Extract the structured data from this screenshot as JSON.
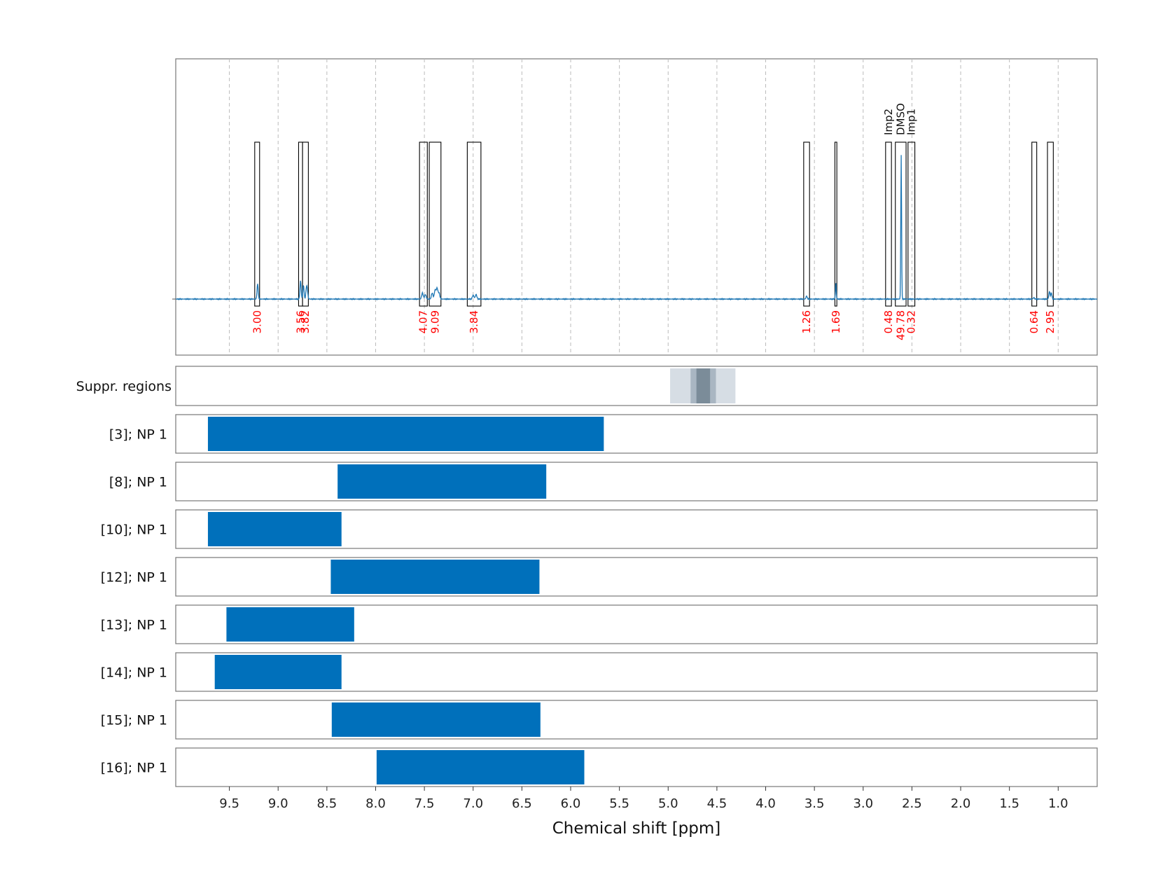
{
  "chart_data": {
    "type": "bar",
    "xlabel": "Chemical shift [ppm]",
    "xlim": [
      10.05,
      0.6
    ],
    "x_ticks": [
      "9.5",
      "9.0",
      "8.5",
      "8.0",
      "7.5",
      "7.0",
      "6.5",
      "6.0",
      "5.5",
      "5.0",
      "4.5",
      "4.0",
      "3.5",
      "3.0",
      "2.5",
      "2.0",
      "1.5",
      "1.0"
    ],
    "x_tick_values": [
      9.5,
      9.0,
      8.5,
      8.0,
      7.5,
      7.0,
      6.5,
      6.0,
      5.5,
      5.0,
      4.5,
      4.0,
      3.5,
      3.0,
      2.5,
      2.0,
      1.5,
      1.0
    ],
    "grid": true,
    "spectrum": {
      "color": "#1f77b4",
      "baseline": 0,
      "ymax": 1.0,
      "peaks": [
        {
          "x": 9.21,
          "height": 0.1,
          "width": 0.006
        },
        {
          "x": 8.77,
          "height": 0.12,
          "width": 0.006
        },
        {
          "x": 8.74,
          "height": 0.09,
          "width": 0.006
        },
        {
          "x": 8.71,
          "height": 0.07,
          "width": 0.006
        },
        {
          "x": 8.7,
          "height": 0.05,
          "width": 0.006
        },
        {
          "x": 7.52,
          "height": 0.04,
          "width": 0.008
        },
        {
          "x": 7.49,
          "height": 0.03,
          "width": 0.008
        },
        {
          "x": 7.42,
          "height": 0.04,
          "width": 0.008
        },
        {
          "x": 7.39,
          "height": 0.06,
          "width": 0.008
        },
        {
          "x": 7.37,
          "height": 0.07,
          "width": 0.008
        },
        {
          "x": 7.35,
          "height": 0.04,
          "width": 0.008
        },
        {
          "x": 7.0,
          "height": 0.025,
          "width": 0.008
        },
        {
          "x": 6.97,
          "height": 0.03,
          "width": 0.008
        },
        {
          "x": 3.58,
          "height": 0.02,
          "width": 0.006
        },
        {
          "x": 3.28,
          "height": 0.11,
          "width": 0.004
        },
        {
          "x": 2.61,
          "height": 0.95,
          "width": 0.004
        },
        {
          "x": 1.25,
          "height": 0.01,
          "width": 0.006
        },
        {
          "x": 1.09,
          "height": 0.05,
          "width": 0.006
        },
        {
          "x": 1.07,
          "height": 0.04,
          "width": 0.006
        }
      ]
    },
    "integration_regions": [
      {
        "from": 9.24,
        "to": 9.19,
        "integral": "3.00",
        "name": ""
      },
      {
        "from": 8.79,
        "to": 8.75,
        "integral": "3.56",
        "name": ""
      },
      {
        "from": 8.75,
        "to": 8.69,
        "integral": "3.82",
        "name": ""
      },
      {
        "from": 7.55,
        "to": 7.47,
        "integral": "4.07",
        "name": ""
      },
      {
        "from": 7.45,
        "to": 7.33,
        "integral": "9.09",
        "name": ""
      },
      {
        "from": 7.06,
        "to": 6.92,
        "integral": "3.84",
        "name": ""
      },
      {
        "from": 3.61,
        "to": 3.55,
        "integral": "1.26",
        "name": ""
      },
      {
        "from": 3.29,
        "to": 3.27,
        "integral": "1.69",
        "name": ""
      },
      {
        "from": 2.77,
        "to": 2.71,
        "integral": "0.48",
        "name": "Imp2"
      },
      {
        "from": 2.67,
        "to": 2.56,
        "integral": "49.78",
        "name": "DMSO"
      },
      {
        "from": 2.54,
        "to": 2.47,
        "integral": "0.32",
        "name": "Imp1"
      },
      {
        "from": 1.27,
        "to": 1.22,
        "integral": "0.64",
        "name": ""
      },
      {
        "from": 1.11,
        "to": 1.05,
        "integral": "2.95",
        "name": ""
      }
    ],
    "suppressed_regions": {
      "label": "Suppr. regions",
      "bands": [
        {
          "from": 4.98,
          "to": 4.31,
          "color": "#d6dde4"
        },
        {
          "from": 4.77,
          "to": 4.51,
          "color": "#a9b6c2"
        },
        {
          "from": 4.71,
          "to": 4.57,
          "color": "#7b8c99"
        }
      ]
    },
    "series": [
      {
        "name": "[3]; NP 1",
        "from": 9.72,
        "to": 5.66
      },
      {
        "name": "[8]; NP 1",
        "from": 8.39,
        "to": 6.25
      },
      {
        "name": "[10]; NP 1",
        "from": 9.72,
        "to": 8.35
      },
      {
        "name": "[12]; NP 1",
        "from": 8.46,
        "to": 6.32
      },
      {
        "name": "[13]; NP 1",
        "from": 9.53,
        "to": 8.22
      },
      {
        "name": "[14]; NP 1",
        "from": 9.65,
        "to": 8.35
      },
      {
        "name": "[15]; NP 1",
        "from": 8.45,
        "to": 6.31
      },
      {
        "name": "[16]; NP 1",
        "from": 7.99,
        "to": 5.86
      }
    ],
    "bar_color": "#0070bb"
  }
}
